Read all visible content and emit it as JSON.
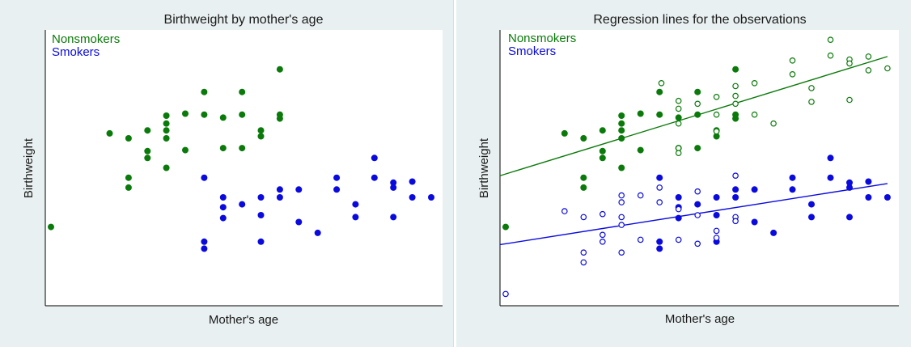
{
  "chart_data": [
    {
      "type": "scatter",
      "title": "Birthweight by mother's age",
      "xlabel": "Mother's age",
      "ylabel": "Birthweight",
      "ticks": "none",
      "grid": false,
      "legend_placement": "top-left",
      "legend": [
        "Nonsmokers",
        "Smokers"
      ],
      "xlim": [
        0,
        21
      ],
      "ylim": [
        0,
        28
      ],
      "series": [
        {
          "name": "Nonsmokers",
          "color": "#0a7a0a",
          "marker": "filled-circle",
          "points": [
            [
              0.3,
              8
            ],
            [
              3.4,
              17.5
            ],
            [
              4.4,
              13
            ],
            [
              4.4,
              17
            ],
            [
              4.4,
              12
            ],
            [
              5.4,
              17.8
            ],
            [
              5.4,
              15.7
            ],
            [
              5.4,
              15
            ],
            [
              6.4,
              17.8
            ],
            [
              6.4,
              19.3
            ],
            [
              6.4,
              18.5
            ],
            [
              6.4,
              17
            ],
            [
              6.4,
              14
            ],
            [
              7.4,
              19.5
            ],
            [
              7.4,
              15.8
            ],
            [
              8.4,
              21.7
            ],
            [
              8.4,
              19.4
            ],
            [
              9.4,
              19.1
            ],
            [
              9.4,
              16
            ],
            [
              10.4,
              21.7
            ],
            [
              10.4,
              19.4
            ],
            [
              10.4,
              16
            ],
            [
              11.4,
              17.8
            ],
            [
              11.4,
              17.2
            ],
            [
              12.4,
              24
            ],
            [
              12.4,
              19.4
            ],
            [
              12.4,
              19
            ]
          ]
        },
        {
          "name": "Smokers",
          "color": "#0a0adf",
          "marker": "filled-circle",
          "points": [
            [
              8.4,
              13
            ],
            [
              8.4,
              6.5
            ],
            [
              8.4,
              5.8
            ],
            [
              9.4,
              11
            ],
            [
              9.4,
              10
            ],
            [
              9.4,
              8.9
            ],
            [
              10.4,
              10.3
            ],
            [
              11.4,
              11
            ],
            [
              11.4,
              9.2
            ],
            [
              11.4,
              6.5
            ],
            [
              12.4,
              11
            ],
            [
              12.4,
              11.8
            ],
            [
              13.4,
              8.5
            ],
            [
              13.4,
              11.8
            ],
            [
              14.4,
              7.4
            ],
            [
              15.4,
              13
            ],
            [
              15.4,
              11.8
            ],
            [
              16.4,
              10.3
            ],
            [
              16.4,
              9
            ],
            [
              17.4,
              15
            ],
            [
              17.4,
              13
            ],
            [
              18.4,
              12.5
            ],
            [
              18.4,
              12
            ],
            [
              18.4,
              9
            ],
            [
              19.4,
              12.6
            ],
            [
              19.4,
              11
            ],
            [
              20.4,
              11
            ]
          ]
        }
      ]
    },
    {
      "type": "scatter",
      "title": "Regression lines for the observations",
      "xlabel": "Mother's age",
      "ylabel": "Birthweight",
      "ticks": "none",
      "grid": false,
      "legend_placement": "top-left",
      "legend": [
        "Nonsmokers",
        "Smokers"
      ],
      "xlim": [
        0,
        21
      ],
      "ylim": [
        0,
        28
      ],
      "series": [
        {
          "name": "Nonsmokers",
          "color": "#0a7a0a",
          "marker": "filled-circle",
          "points": [
            [
              0.3,
              8
            ],
            [
              3.4,
              17.5
            ],
            [
              4.4,
              13
            ],
            [
              4.4,
              17
            ],
            [
              4.4,
              12
            ],
            [
              5.4,
              17.8
            ],
            [
              5.4,
              15.7
            ],
            [
              5.4,
              15
            ],
            [
              6.4,
              17.8
            ],
            [
              6.4,
              19.3
            ],
            [
              6.4,
              18.5
            ],
            [
              6.4,
              17
            ],
            [
              6.4,
              14
            ],
            [
              7.4,
              19.5
            ],
            [
              7.4,
              15.8
            ],
            [
              8.4,
              21.7
            ],
            [
              8.4,
              19.4
            ],
            [
              9.4,
              19.1
            ],
            [
              9.4,
              16
            ],
            [
              10.4,
              21.7
            ],
            [
              10.4,
              19.4
            ],
            [
              10.4,
              16
            ],
            [
              11.4,
              17.8
            ],
            [
              11.4,
              17.2
            ],
            [
              12.4,
              24
            ],
            [
              12.4,
              19.4
            ],
            [
              12.4,
              19
            ]
          ]
        },
        {
          "name": "Nonsmokers",
          "color": "#0a7a0a",
          "marker": "hollow-circle",
          "points": [
            [
              8.5,
              22.6
            ],
            [
              9.4,
              20.8
            ],
            [
              9.4,
              20
            ],
            [
              9.4,
              18.5
            ],
            [
              9.4,
              16
            ],
            [
              9.4,
              15.5
            ],
            [
              10.4,
              20.5
            ],
            [
              11.4,
              21.2
            ],
            [
              11.4,
              19.4
            ],
            [
              11.4,
              17.7
            ],
            [
              12.4,
              22.3
            ],
            [
              12.4,
              21.3
            ],
            [
              12.4,
              20.5
            ],
            [
              13.4,
              22.6
            ],
            [
              13.4,
              19.4
            ],
            [
              14.4,
              18.5
            ],
            [
              15.4,
              24.9
            ],
            [
              15.4,
              23.5
            ],
            [
              16.4,
              22.1
            ],
            [
              16.4,
              20.7
            ],
            [
              17.4,
              27
            ],
            [
              17.4,
              25.4
            ],
            [
              18.4,
              25
            ],
            [
              18.4,
              24.6
            ],
            [
              18.4,
              20.9
            ],
            [
              19.4,
              25.3
            ],
            [
              19.4,
              23.9
            ],
            [
              20.4,
              24.1
            ]
          ]
        },
        {
          "name": "Smokers",
          "color": "#0a0adf",
          "marker": "filled-circle",
          "points": [
            [
              8.4,
              13
            ],
            [
              8.4,
              6.5
            ],
            [
              8.4,
              5.8
            ],
            [
              9.4,
              11
            ],
            [
              9.4,
              10
            ],
            [
              9.4,
              8.9
            ],
            [
              10.4,
              10.3
            ],
            [
              11.4,
              11
            ],
            [
              11.4,
              9.2
            ],
            [
              11.4,
              6.5
            ],
            [
              12.4,
              11
            ],
            [
              12.4,
              11.8
            ],
            [
              13.4,
              8.5
            ],
            [
              13.4,
              11.8
            ],
            [
              14.4,
              7.4
            ],
            [
              15.4,
              13
            ],
            [
              15.4,
              11.8
            ],
            [
              16.4,
              10.3
            ],
            [
              16.4,
              9
            ],
            [
              17.4,
              15
            ],
            [
              17.4,
              13
            ],
            [
              18.4,
              12.5
            ],
            [
              18.4,
              12
            ],
            [
              18.4,
              9
            ],
            [
              19.4,
              12.6
            ],
            [
              19.4,
              11
            ],
            [
              20.4,
              11
            ]
          ]
        },
        {
          "name": "Smokers",
          "color": "#0a0adf",
          "marker": "hollow-circle",
          "points": [
            [
              0.3,
              1.2
            ],
            [
              3.4,
              9.6
            ],
            [
              4.4,
              9
            ],
            [
              4.4,
              5.4
            ],
            [
              4.4,
              4.4
            ],
            [
              5.4,
              9.3
            ],
            [
              5.4,
              7.2
            ],
            [
              5.4,
              6.5
            ],
            [
              6.4,
              11.2
            ],
            [
              6.4,
              10.5
            ],
            [
              6.4,
              9
            ],
            [
              6.4,
              8.2
            ],
            [
              6.4,
              5.4
            ],
            [
              7.4,
              11.2
            ],
            [
              7.4,
              6.7
            ],
            [
              8.4,
              12
            ],
            [
              8.4,
              10.5
            ],
            [
              9.4,
              9.8
            ],
            [
              9.4,
              6.7
            ],
            [
              10.4,
              11.6
            ],
            [
              10.4,
              9.2
            ],
            [
              10.4,
              6.3
            ],
            [
              11.4,
              7.6
            ],
            [
              11.4,
              6.9
            ],
            [
              12.4,
              13.2
            ],
            [
              12.4,
              9
            ],
            [
              12.4,
              8.6
            ]
          ]
        }
      ],
      "regression_lines": [
        {
          "name": "Nonsmokers",
          "color": "#0a7a0a",
          "x": [
            0,
            20.4
          ],
          "y": [
            13.2,
            25.3
          ]
        },
        {
          "name": "Smokers",
          "color": "#0a0adf",
          "x": [
            0,
            20.4
          ],
          "y": [
            6.2,
            12.4
          ]
        }
      ]
    }
  ]
}
